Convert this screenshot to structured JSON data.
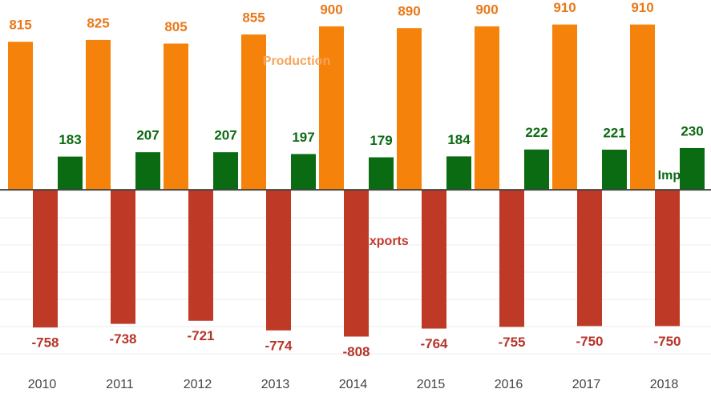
{
  "chart_data": {
    "type": "bar",
    "categories": [
      "2010",
      "2011",
      "2012",
      "2013",
      "2014",
      "2015",
      "2016",
      "2017",
      "2018"
    ],
    "series": [
      {
        "name": "Production",
        "color": "#f5820a",
        "values": [
          815,
          825,
          805,
          855,
          900,
          890,
          900,
          910,
          910
        ]
      },
      {
        "name": "Exports",
        "color": "#bf3a26",
        "values": [
          -758,
          -738,
          -721,
          -774,
          -808,
          -764,
          -755,
          -750,
          -750
        ]
      },
      {
        "name": "Imports",
        "color": "#0b6b12",
        "values": [
          183,
          207,
          207,
          197,
          179,
          184,
          222,
          221,
          230
        ]
      }
    ],
    "ylim": [
      -960,
      1045
    ]
  }
}
